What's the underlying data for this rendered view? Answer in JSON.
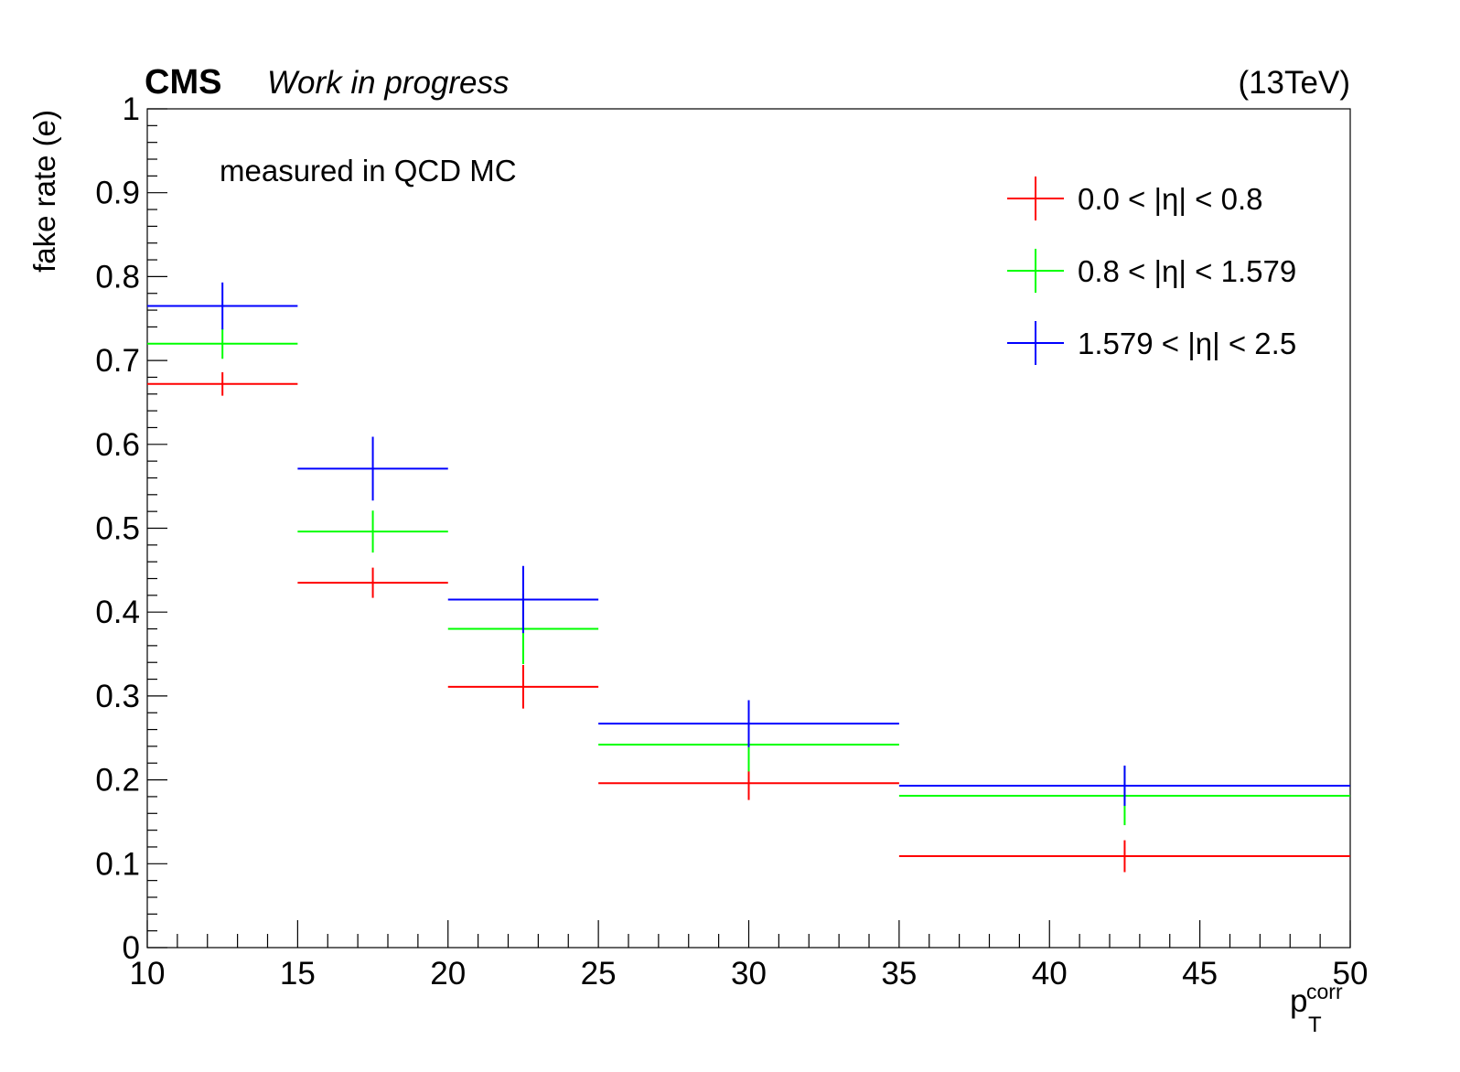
{
  "chart_data": {
    "type": "scatter",
    "header": {
      "experiment": "CMS",
      "status": "Work in progress",
      "energy": "(13TeV)"
    },
    "annotation": "measured in QCD MC",
    "ylabel": "fake rate (e)",
    "xlabel": {
      "base": "p",
      "superscript": "corr",
      "subscript": "T"
    },
    "xlim": [
      10,
      50
    ],
    "ylim": [
      0,
      1
    ],
    "x_ticks": [
      "10",
      "15",
      "20",
      "25",
      "30",
      "35",
      "40",
      "45",
      "50"
    ],
    "y_ticks": [
      "0",
      "0.1",
      "0.2",
      "0.3",
      "0.4",
      "0.5",
      "0.6",
      "0.7",
      "0.8",
      "0.9",
      "1"
    ],
    "grid": false,
    "legend_position": "top-right",
    "bins": [
      [
        10,
        15
      ],
      [
        15,
        20
      ],
      [
        20,
        25
      ],
      [
        25,
        35
      ],
      [
        35,
        50
      ]
    ],
    "series": [
      {
        "name": "0.0 < |η| < 0.8",
        "color": "#ff0000",
        "values": [
          0.672,
          0.435,
          0.311,
          0.196,
          0.109
        ],
        "errors": [
          0.014,
          0.018,
          0.026,
          0.02,
          0.019
        ]
      },
      {
        "name": "0.8 < |η| < 1.579",
        "color": "#00ff00",
        "values": [
          0.72,
          0.496,
          0.38,
          0.242,
          0.181
        ],
        "errors": [
          0.018,
          0.025,
          0.042,
          0.032,
          0.035
        ]
      },
      {
        "name": "1.579 < |η| < 2.5",
        "color": "#0000ff",
        "values": [
          0.765,
          0.571,
          0.415,
          0.267,
          0.193
        ],
        "errors": [
          0.028,
          0.038,
          0.04,
          0.028,
          0.024
        ]
      }
    ]
  }
}
